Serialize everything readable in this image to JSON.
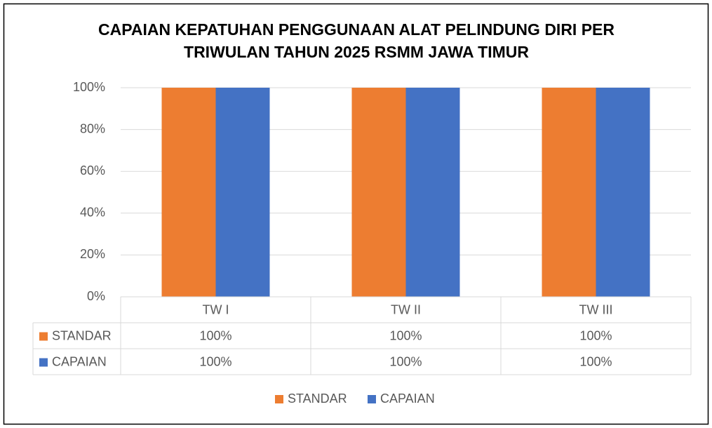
{
  "chart_data": {
    "type": "bar",
    "title": [
      "CAPAIAN KEPATUHAN PENGGUNAAN ALAT PELINDUNG DIRI PER",
      "TRIWULAN TAHUN 2025 RSMM JAWA TIMUR"
    ],
    "categories": [
      "TW I",
      "TW II",
      "TW III"
    ],
    "series": [
      {
        "name": "STANDAR",
        "color": "#ed7d31",
        "values": [
          100,
          100,
          100
        ],
        "value_labels": [
          "100%",
          "100%",
          "100%"
        ]
      },
      {
        "name": "CAPAIAN",
        "color": "#4472c4",
        "values": [
          100,
          100,
          100
        ],
        "value_labels": [
          "100%",
          "100%",
          "100%"
        ]
      }
    ],
    "ylim": [
      0,
      100
    ],
    "yticks": [
      {
        "value": 0,
        "label": "0%"
      },
      {
        "value": 20,
        "label": "20%"
      },
      {
        "value": 40,
        "label": "40%"
      },
      {
        "value": 60,
        "label": "60%"
      },
      {
        "value": 80,
        "label": "80%"
      },
      {
        "value": 100,
        "label": "100%"
      }
    ],
    "grid": true,
    "data_table": true,
    "legend": "bottom"
  }
}
